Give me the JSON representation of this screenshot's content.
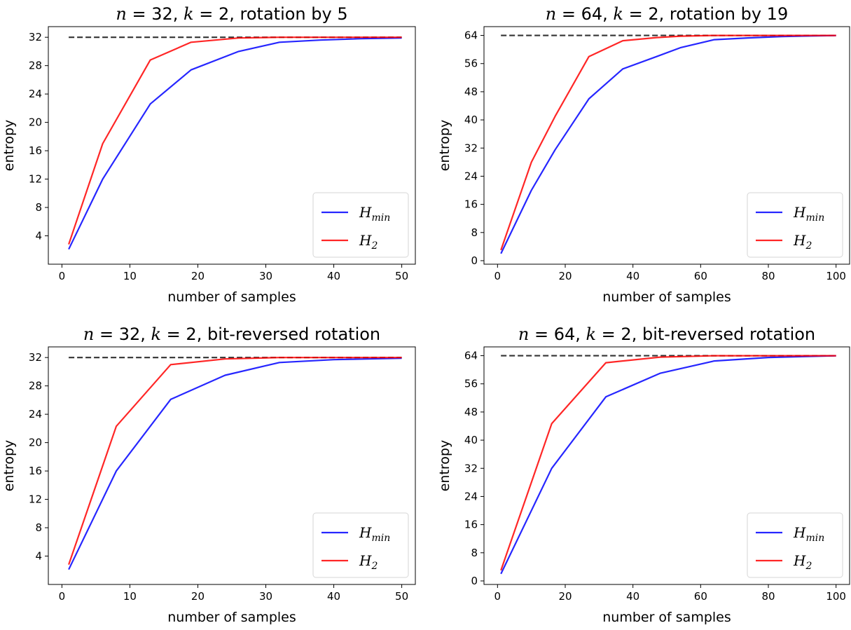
{
  "figure": {
    "background": "#ffffff",
    "grid": false
  },
  "chart_data": [
    {
      "type": "line",
      "title": {
        "n": "32",
        "k": "2",
        "suffix": "rotation by 5"
      },
      "xlabel": "number of samples",
      "ylabel": "entropy",
      "xlim": [
        -2,
        52
      ],
      "ylim": [
        0,
        33.5
      ],
      "xticks": [
        0,
        10,
        20,
        30,
        40,
        50
      ],
      "yticks": [
        4,
        8,
        12,
        16,
        20,
        24,
        28,
        32
      ],
      "reference_line": {
        "y": 32,
        "x": [
          1,
          50
        ],
        "style": "dashed",
        "color": "#333333"
      },
      "legend": {
        "location": "lower-right",
        "labels": [
          {
            "main": "H",
            "sub": "min"
          },
          {
            "main": "H",
            "sub": "2"
          }
        ]
      },
      "series": [
        {
          "color": "#0000ff",
          "x": [
            1,
            6,
            13,
            19,
            26,
            32,
            38,
            44,
            50
          ],
          "values": [
            2.1,
            12.0,
            22.6,
            27.4,
            30.0,
            31.3,
            31.6,
            31.8,
            31.9
          ]
        },
        {
          "color": "#ff0000",
          "x": [
            1,
            6,
            13,
            19,
            26,
            32,
            38,
            44,
            50
          ],
          "values": [
            2.8,
            17.0,
            28.8,
            31.3,
            31.9,
            32.0,
            32.0,
            32.0,
            32.0
          ]
        }
      ]
    },
    {
      "type": "line",
      "title": {
        "n": "64",
        "k": "2",
        "suffix": "rotation by 19"
      },
      "xlabel": "number of samples",
      "ylabel": "entropy",
      "xlim": [
        -4,
        104
      ],
      "ylim": [
        -1,
        66.5
      ],
      "xticks": [
        0,
        20,
        40,
        60,
        80,
        100
      ],
      "yticks": [
        0,
        8,
        16,
        24,
        32,
        40,
        48,
        56,
        64
      ],
      "reference_line": {
        "y": 64,
        "x": [
          1,
          100
        ],
        "style": "dashed",
        "color": "#333333"
      },
      "legend": {
        "location": "lower-right",
        "labels": [
          {
            "main": "H",
            "sub": "min"
          },
          {
            "main": "H",
            "sub": "2"
          }
        ]
      },
      "series": [
        {
          "color": "#0000ff",
          "x": [
            1,
            10,
            17,
            27,
            37,
            47,
            54,
            64,
            74,
            84,
            100
          ],
          "values": [
            2.0,
            20.0,
            31.5,
            46.0,
            54.5,
            58.0,
            60.5,
            62.8,
            63.3,
            63.7,
            64.0
          ]
        },
        {
          "color": "#ff0000",
          "x": [
            1,
            10,
            17,
            27,
            37,
            47,
            54,
            64,
            74,
            84,
            100
          ],
          "values": [
            3.0,
            28.0,
            41.0,
            58.0,
            62.5,
            63.4,
            63.8,
            64.0,
            64.0,
            64.0,
            64.0
          ]
        }
      ]
    },
    {
      "type": "line",
      "title": {
        "n": "32",
        "k": "2",
        "suffix": "bit-reversed rotation"
      },
      "xlabel": "number of samples",
      "ylabel": "entropy",
      "xlim": [
        -2,
        52
      ],
      "ylim": [
        0,
        33.5
      ],
      "xticks": [
        0,
        10,
        20,
        30,
        40,
        50
      ],
      "yticks": [
        4,
        8,
        12,
        16,
        20,
        24,
        28,
        32
      ],
      "reference_line": {
        "y": 32,
        "x": [
          1,
          50
        ],
        "style": "dashed",
        "color": "#333333"
      },
      "legend": {
        "location": "lower-right",
        "labels": [
          {
            "main": "H",
            "sub": "min"
          },
          {
            "main": "H",
            "sub": "2"
          }
        ]
      },
      "series": [
        {
          "color": "#0000ff",
          "x": [
            1,
            8,
            16,
            24,
            32,
            40,
            50
          ],
          "values": [
            2.1,
            16.0,
            26.1,
            29.5,
            31.3,
            31.7,
            31.9
          ]
        },
        {
          "color": "#ff0000",
          "x": [
            1,
            8,
            16,
            24,
            32,
            40,
            50
          ],
          "values": [
            2.8,
            22.3,
            31.0,
            31.8,
            32.0,
            32.0,
            32.0
          ]
        }
      ]
    },
    {
      "type": "line",
      "title": {
        "n": "64",
        "k": "2",
        "suffix": "bit-reversed rotation"
      },
      "xlabel": "number of samples",
      "ylabel": "entropy",
      "xlim": [
        -4,
        104
      ],
      "ylim": [
        -1,
        66.5
      ],
      "xticks": [
        0,
        20,
        40,
        60,
        80,
        100
      ],
      "yticks": [
        0,
        8,
        16,
        24,
        32,
        40,
        48,
        56,
        64
      ],
      "reference_line": {
        "y": 64,
        "x": [
          1,
          100
        ],
        "style": "dashed",
        "color": "#333333"
      },
      "legend": {
        "location": "lower-right",
        "labels": [
          {
            "main": "H",
            "sub": "min"
          },
          {
            "main": "H",
            "sub": "2"
          }
        ]
      },
      "series": [
        {
          "color": "#0000ff",
          "x": [
            1,
            16,
            32,
            48,
            64,
            80,
            100
          ],
          "values": [
            2.0,
            32.0,
            52.3,
            59.0,
            62.5,
            63.5,
            64.0
          ]
        },
        {
          "color": "#ff0000",
          "x": [
            1,
            16,
            32,
            48,
            64,
            80,
            100
          ],
          "values": [
            3.0,
            44.7,
            62.0,
            63.6,
            64.0,
            64.0,
            64.0
          ]
        }
      ]
    }
  ]
}
